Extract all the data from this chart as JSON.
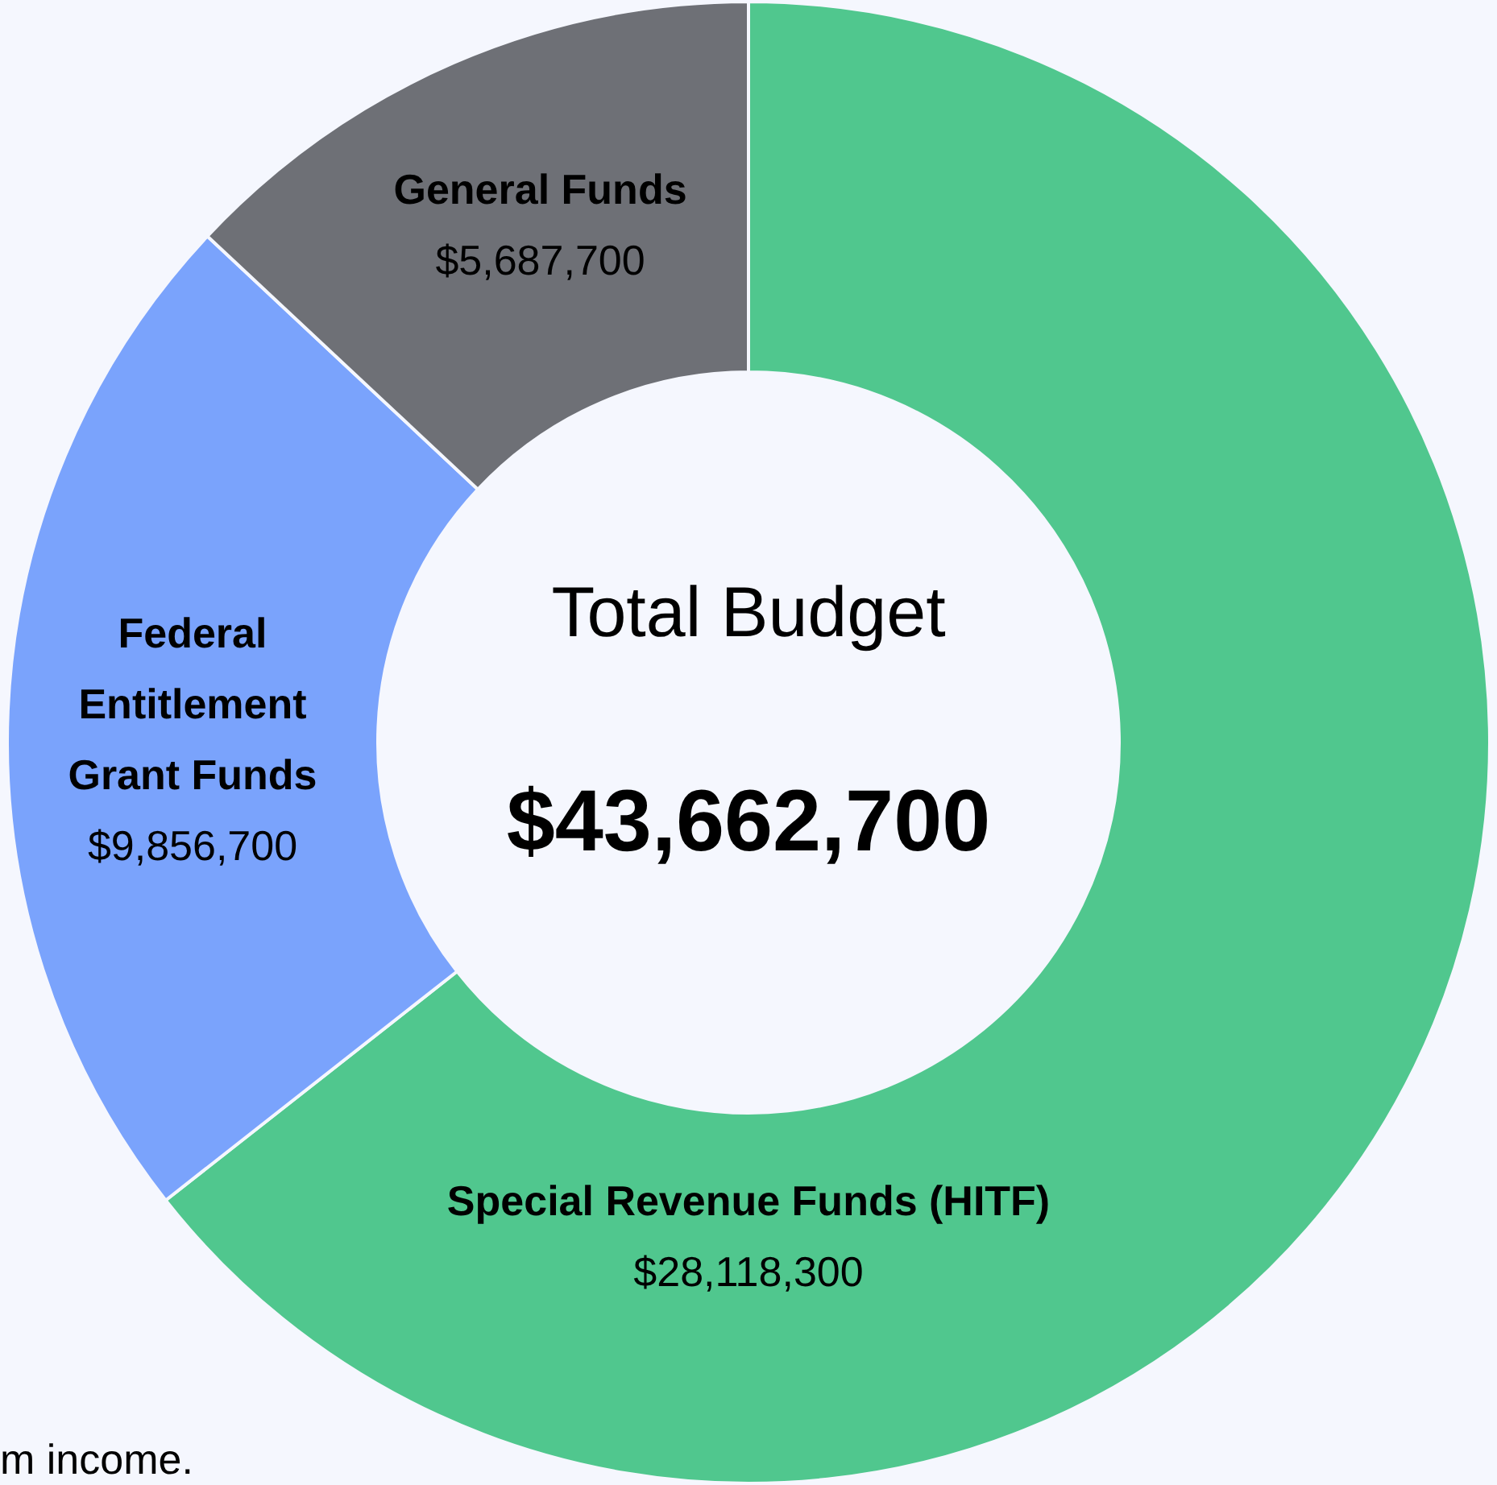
{
  "chart_data": {
    "type": "donut",
    "title": "Total Budget",
    "categories": [
      "Special Revenue Funds (HITF)",
      "Federal Entitlement Grant Funds",
      "General Funds"
    ],
    "values": [
      28118300,
      9856700,
      5687700
    ],
    "colors": [
      "#50c78e",
      "#7aa3fc",
      "#6e7076"
    ],
    "value_labels": [
      "$28,118,300",
      "$9,856,700",
      "$5,687,700"
    ],
    "annotations": [
      "$43,662,700",
      "m income."
    ],
    "legend": false
  }
}
